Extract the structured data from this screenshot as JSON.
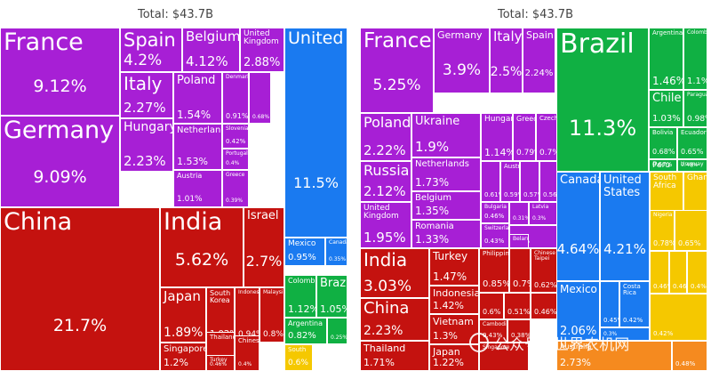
{
  "colors": {
    "europe": "#a71fd5",
    "americas_north": "#1a7af0",
    "asia": "#c4120f",
    "americas_south": "#10b043",
    "africa": "#f5c800",
    "oceania": "#f58a1f"
  },
  "chart_data": [
    {
      "type": "treemap",
      "title": "Total: $43.7B",
      "tiles": [
        {
          "name": "France",
          "value": "9.12%",
          "region": "europe"
        },
        {
          "name": "Germany",
          "value": "9.09%",
          "region": "europe"
        },
        {
          "name": "Spain",
          "value": "4.2%",
          "region": "europe"
        },
        {
          "name": "Belgium",
          "value": "4.12%",
          "region": "europe"
        },
        {
          "name": "United Kingdom",
          "value": "2.88%",
          "region": "europe"
        },
        {
          "name": "Italy",
          "value": "2.27%",
          "region": "europe"
        },
        {
          "name": "Hungary",
          "value": "2.23%",
          "region": "europe"
        },
        {
          "name": "Poland",
          "value": "1.54%",
          "region": "europe"
        },
        {
          "name": "Netherlands",
          "value": "1.53%",
          "region": "europe"
        },
        {
          "name": "Austria",
          "value": "1.01%",
          "region": "europe"
        },
        {
          "name": "Denmark",
          "value": "0.91%",
          "region": "europe"
        },
        {
          "name": "",
          "value": "0.68%",
          "region": "europe"
        },
        {
          "name": "Slovenia",
          "value": "0.42%",
          "region": "europe"
        },
        {
          "name": "Portugal",
          "value": "0.4%",
          "region": "europe"
        },
        {
          "name": "Greece",
          "value": "0.39%",
          "region": "europe"
        },
        {
          "name": "United States",
          "value": "11.5%",
          "region": "americas_north"
        },
        {
          "name": "Mexico",
          "value": "0.95%",
          "region": "americas_north"
        },
        {
          "name": "Canada",
          "value": "0.35%",
          "region": "americas_north"
        },
        {
          "name": "China",
          "value": "21.7%",
          "region": "asia"
        },
        {
          "name": "India",
          "value": "5.62%",
          "region": "asia"
        },
        {
          "name": "Israel",
          "value": "2.7%",
          "region": "asia"
        },
        {
          "name": "Japan",
          "value": "1.89%",
          "region": "asia"
        },
        {
          "name": "South Korea",
          "value": "1.02%",
          "region": "asia"
        },
        {
          "name": "Indonesia",
          "value": "0.94%",
          "region": "asia"
        },
        {
          "name": "Malaysia",
          "value": "0.8%",
          "region": "asia"
        },
        {
          "name": "Singapore",
          "value": "1.2%",
          "region": "asia"
        },
        {
          "name": "Thailand",
          "value": "0.55%",
          "region": "asia"
        },
        {
          "name": "Chinese...",
          "value": "0.4%",
          "region": "asia"
        },
        {
          "name": "Turkey",
          "value": "0.46%",
          "region": "asia"
        },
        {
          "name": "Colombia",
          "value": "1.12%",
          "region": "americas_south"
        },
        {
          "name": "Brazil",
          "value": "1.05%",
          "region": "americas_south"
        },
        {
          "name": "Argentina",
          "value": "0.82%",
          "region": "americas_south"
        },
        {
          "name": "",
          "value": "0.25%",
          "region": "americas_south"
        },
        {
          "name": "South",
          "value": "0.6%",
          "region": "africa"
        }
      ]
    },
    {
      "type": "treemap",
      "title": "Total: $43.7B",
      "tiles": [
        {
          "name": "France",
          "value": "5.25%",
          "region": "europe"
        },
        {
          "name": "Germany",
          "value": "3.9%",
          "region": "europe"
        },
        {
          "name": "Italy",
          "value": "2.5%",
          "region": "europe"
        },
        {
          "name": "Spain",
          "value": "2.24%",
          "region": "europe"
        },
        {
          "name": "Poland",
          "value": "2.22%",
          "region": "europe"
        },
        {
          "name": "Russia",
          "value": "2.12%",
          "region": "europe"
        },
        {
          "name": "United Kingdom",
          "value": "1.95%",
          "region": "europe"
        },
        {
          "name": "Ukraine",
          "value": "1.9%",
          "region": "europe"
        },
        {
          "name": "Netherlands",
          "value": "1.73%",
          "region": "europe"
        },
        {
          "name": "Belgium",
          "value": "1.35%",
          "region": "europe"
        },
        {
          "name": "Romania",
          "value": "1.33%",
          "region": "europe"
        },
        {
          "name": "Hungary",
          "value": "1.14%",
          "region": "europe"
        },
        {
          "name": "Greece",
          "value": "0.79%",
          "region": "europe"
        },
        {
          "name": "Czechia",
          "value": "0.7%",
          "region": "europe"
        },
        {
          "name": "",
          "value": "0.61%",
          "region": "europe"
        },
        {
          "name": "Austria",
          "value": "0.59%",
          "region": "europe"
        },
        {
          "name": "",
          "value": "0.57%",
          "region": "europe"
        },
        {
          "name": "",
          "value": "0.56%",
          "region": "europe"
        },
        {
          "name": "Bulgaria",
          "value": "0.46%",
          "region": "europe"
        },
        {
          "name": "Switzerland",
          "value": "0.43%",
          "region": "europe"
        },
        {
          "name": "",
          "value": "0.31%",
          "region": "europe"
        },
        {
          "name": "Latvia",
          "value": "0.3%",
          "region": "europe"
        },
        {
          "name": "",
          "value": "0.31%",
          "region": "europe"
        },
        {
          "name": "Belarus",
          "value": "",
          "region": "europe"
        },
        {
          "name": "India",
          "value": "3.03%",
          "region": "asia"
        },
        {
          "name": "China",
          "value": "2.23%",
          "region": "asia"
        },
        {
          "name": "Thailand",
          "value": "1.71%",
          "region": "asia"
        },
        {
          "name": "Turkey",
          "value": "1.47%",
          "region": "asia"
        },
        {
          "name": "Indonesia",
          "value": "1.42%",
          "region": "asia"
        },
        {
          "name": "Vietnam",
          "value": "1.3%",
          "region": "asia"
        },
        {
          "name": "Japan",
          "value": "1.22%",
          "region": "asia"
        },
        {
          "name": "Philippines",
          "value": "0.85%",
          "region": "asia"
        },
        {
          "name": "",
          "value": "0.7%",
          "region": "asia"
        },
        {
          "name": "Chinese Taipei",
          "value": "0.62%",
          "region": "asia"
        },
        {
          "name": "",
          "value": "0.6%",
          "region": "asia"
        },
        {
          "name": "",
          "value": "0.51%",
          "region": "asia"
        },
        {
          "name": "",
          "value": "0.46%",
          "region": "asia"
        },
        {
          "name": "Cambodia",
          "value": "0.43%",
          "region": "asia"
        },
        {
          "name": "",
          "value": "0.38%",
          "region": "asia"
        },
        {
          "name": "Singapore",
          "value": "",
          "region": "asia"
        },
        {
          "name": "Brazil",
          "value": "11.3%",
          "region": "americas_south"
        },
        {
          "name": "Argentina",
          "value": "1.46%",
          "region": "americas_south"
        },
        {
          "name": "Colombia",
          "value": "1.1%",
          "region": "americas_south"
        },
        {
          "name": "Chile",
          "value": "1.03%",
          "region": "americas_south"
        },
        {
          "name": "Paraguay",
          "value": "0.98%",
          "region": "americas_south"
        },
        {
          "name": "Bolivia",
          "value": "0.68%",
          "region": "americas_south"
        },
        {
          "name": "Ecuador",
          "value": "0.65%",
          "region": "americas_south"
        },
        {
          "name": "Peru",
          "value": "0.67%",
          "region": "americas_south"
        },
        {
          "name": "Uruguay",
          "value": "0.49%",
          "region": "americas_south"
        },
        {
          "name": "Canada",
          "value": "4.64%",
          "region": "americas_north"
        },
        {
          "name": "United States",
          "value": "4.21%",
          "region": "americas_north"
        },
        {
          "name": "Mexico",
          "value": "2.06%",
          "region": "americas_north"
        },
        {
          "name": "",
          "value": "0.45%",
          "region": "americas_north"
        },
        {
          "name": "Costa Rica",
          "value": "0.42%",
          "region": "americas_north"
        },
        {
          "name": "",
          "value": "0.3%",
          "region": "americas_north"
        },
        {
          "name": "South Africa",
          "value": "1.15%",
          "region": "africa"
        },
        {
          "name": "Ghana",
          "value": "0.8%",
          "region": "africa"
        },
        {
          "name": "Nigeria",
          "value": "0.78%",
          "region": "africa"
        },
        {
          "name": "",
          "value": "0.65%",
          "region": "africa"
        },
        {
          "name": "",
          "value": "0.46%",
          "region": "africa"
        },
        {
          "name": "",
          "value": "0.46%",
          "region": "africa"
        },
        {
          "name": "",
          "value": "0.4%",
          "region": "africa"
        },
        {
          "name": "",
          "value": "0.42%",
          "region": "africa"
        },
        {
          "name": "Australia",
          "value": "2.73%",
          "region": "oceania"
        },
        {
          "name": "",
          "value": "0.48%",
          "region": "oceania"
        }
      ]
    }
  ],
  "watermark": "公众号 · 世界农机网"
}
